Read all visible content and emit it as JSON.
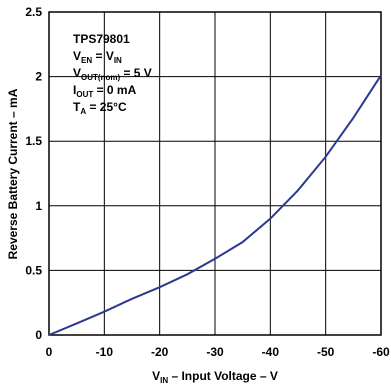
{
  "chart_data": {
    "type": "line",
    "title": "",
    "xlabel": {
      "main": "V",
      "sub": "IN",
      "rest": " – Input Voltage – V"
    },
    "ylabel": "Reverse Battery Current – mA",
    "xlim": [
      0,
      -60
    ],
    "ylim": [
      0,
      2.5
    ],
    "grid": true,
    "x_ticks": [
      0,
      -10,
      -20,
      -30,
      -40,
      -50,
      -60
    ],
    "y_ticks": [
      0,
      0.5,
      1,
      1.5,
      2,
      2.5
    ],
    "x_tick_labels": [
      "0",
      "-10",
      "-20",
      "-30",
      "-40",
      "-50",
      "-60"
    ],
    "y_tick_labels": [
      "0",
      "0.5",
      "1",
      "1.5",
      "2",
      "2.5"
    ],
    "series": [
      {
        "x": [
          0,
          -5,
          -10,
          -15,
          -20,
          -25,
          -30,
          -35,
          -40,
          -45,
          -50,
          -55,
          -60
        ],
        "y": [
          0,
          0.09,
          0.18,
          0.28,
          0.37,
          0.47,
          0.59,
          0.72,
          0.9,
          1.12,
          1.38,
          1.68,
          2.01
        ]
      }
    ],
    "annotations": {
      "line1": "TPS79801",
      "line2": {
        "a": "V",
        "a_sub": "EN",
        "b": " = V",
        "b_sub": "IN"
      },
      "line3": {
        "a": "V",
        "a_sub": "OUT(nom)",
        "b": " = 5 V"
      },
      "line4": {
        "a": "I",
        "a_sub": "OUT",
        "b": " = 0 mA"
      },
      "line5": {
        "a": "T",
        "a_sub": "A",
        "b": " = 25°C"
      }
    }
  },
  "colors": {
    "series": "#2b3990",
    "grid": "#000000",
    "background": "#ffffff"
  }
}
